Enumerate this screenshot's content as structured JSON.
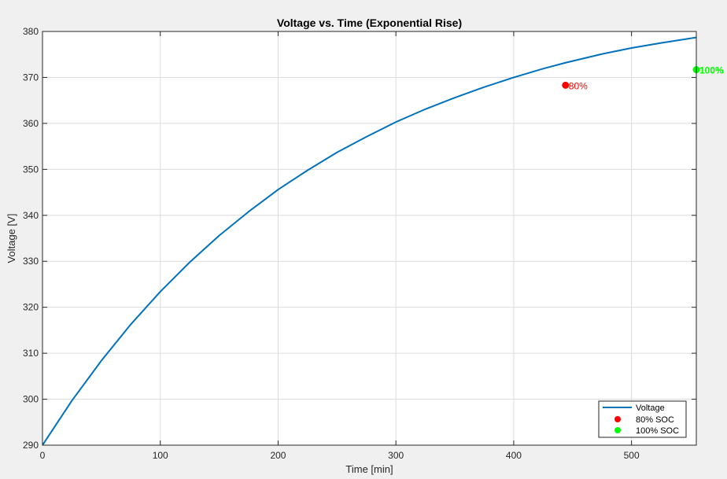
{
  "chart_data": {
    "type": "line",
    "title": "Voltage vs. Time (Exponential Rise)",
    "xlabel": "Time [min]",
    "ylabel": "Voltage [V]",
    "xlim": [
      0,
      555
    ],
    "ylim": [
      290,
      380
    ],
    "xticks": [
      0,
      100,
      200,
      300,
      400,
      500
    ],
    "yticks": [
      290,
      300,
      310,
      320,
      330,
      340,
      350,
      360,
      370,
      380
    ],
    "grid": true,
    "legend_position": "bottom-right",
    "series": [
      {
        "name": "Voltage",
        "color": "#0072bd",
        "x": [
          0,
          25,
          50,
          75,
          100,
          125,
          150,
          175,
          200,
          225,
          250,
          275,
          300,
          325,
          350,
          375,
          400,
          425,
          444,
          475,
          500,
          525,
          555
        ],
        "y": [
          290.0,
          299.7,
          308.4,
          316.3,
          323.4,
          329.8,
          335.6,
          340.8,
          345.6,
          349.8,
          353.7,
          357.1,
          360.3,
          363.1,
          365.6,
          367.9,
          370.0,
          371.9,
          373.2,
          375.1,
          376.4,
          377.5,
          378.7
        ]
      },
      {
        "name": "80% SOC",
        "color": "#ff0000",
        "marker": "circle",
        "x": [
          444
        ],
        "y": [
          368.3
        ],
        "label": "80%"
      },
      {
        "name": "100% SOC",
        "color": "#00ff00",
        "marker": "circle",
        "x": [
          555
        ],
        "y": [
          371.7
        ],
        "label": "100%"
      }
    ]
  }
}
